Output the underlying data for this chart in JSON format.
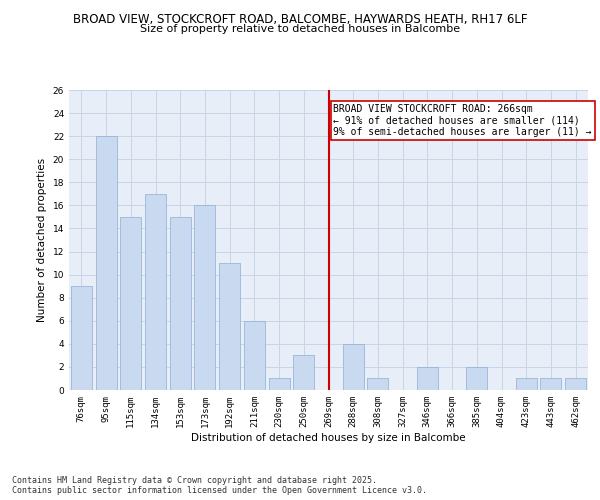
{
  "title_line1": "BROAD VIEW, STOCKCROFT ROAD, BALCOMBE, HAYWARDS HEATH, RH17 6LF",
  "title_line2": "Size of property relative to detached houses in Balcombe",
  "xlabel": "Distribution of detached houses by size in Balcombe",
  "ylabel": "Number of detached properties",
  "categories": [
    "76sqm",
    "95sqm",
    "115sqm",
    "134sqm",
    "153sqm",
    "173sqm",
    "192sqm",
    "211sqm",
    "230sqm",
    "250sqm",
    "269sqm",
    "288sqm",
    "308sqm",
    "327sqm",
    "346sqm",
    "366sqm",
    "385sqm",
    "404sqm",
    "423sqm",
    "443sqm",
    "462sqm"
  ],
  "values": [
    9,
    22,
    15,
    17,
    15,
    16,
    11,
    6,
    1,
    3,
    0,
    4,
    1,
    0,
    2,
    0,
    2,
    0,
    1,
    1,
    1
  ],
  "bar_color": "#c9d9f0",
  "bar_edge_color": "#8badd4",
  "grid_color": "#c8d4e8",
  "bg_color": "#e8eef8",
  "red_line_index": 10,
  "red_line_color": "#cc0000",
  "annotation_text": "BROAD VIEW STOCKCROFT ROAD: 266sqm\n← 91% of detached houses are smaller (114)\n9% of semi-detached houses are larger (11) →",
  "annotation_box_color": "#ffffff",
  "annotation_border_color": "#cc0000",
  "ylim": [
    0,
    26
  ],
  "yticks": [
    0,
    2,
    4,
    6,
    8,
    10,
    12,
    14,
    16,
    18,
    20,
    22,
    24,
    26
  ],
  "footer": "Contains HM Land Registry data © Crown copyright and database right 2025.\nContains public sector information licensed under the Open Government Licence v3.0.",
  "title_fontsize": 8.5,
  "subtitle_fontsize": 8.0,
  "axis_label_fontsize": 7.5,
  "tick_fontsize": 6.5,
  "annotation_fontsize": 7.0,
  "footer_fontsize": 6.0
}
